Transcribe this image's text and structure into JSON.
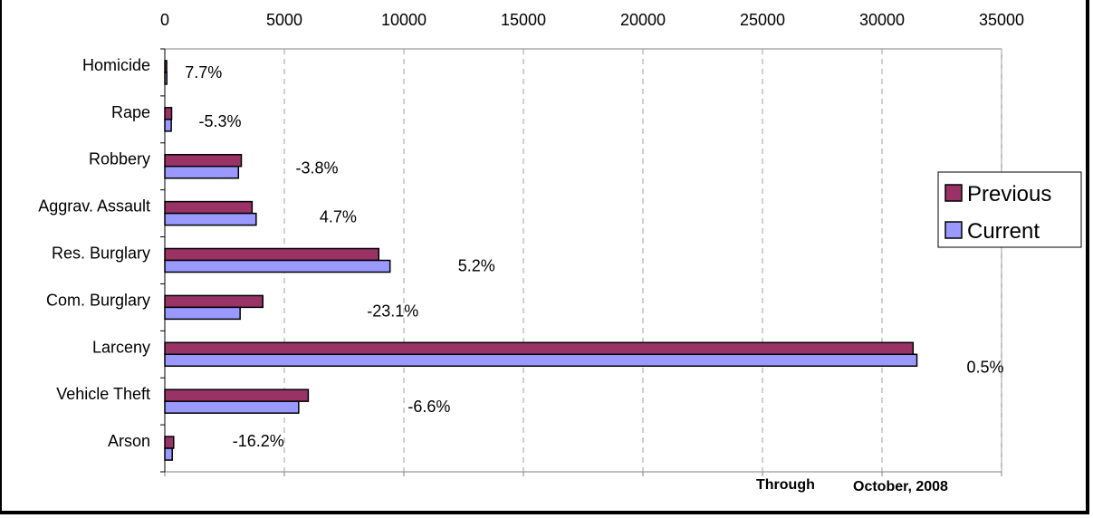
{
  "chart_data": {
    "type": "bar",
    "orientation": "horizontal",
    "categories": [
      "Homicide",
      "Rape",
      "Robbery",
      "Aggrav. Assault",
      "Res. Burglary",
      "Com. Burglary",
      "Larceny",
      "Vehicle Theft",
      "Arson"
    ],
    "series": [
      {
        "name": "Previous",
        "color": "#993366",
        "values": [
          78,
          285,
          3200,
          3650,
          8950,
          4100,
          31300,
          6000,
          370
        ]
      },
      {
        "name": "Current",
        "color": "#9999ff",
        "values": [
          84,
          270,
          3080,
          3820,
          9420,
          3150,
          31460,
          5600,
          310
        ]
      }
    ],
    "change_labels": [
      "7.7%",
      "-5.3%",
      "-3.8%",
      "4.7%",
      "5.2%",
      "-23.1%",
      "0.5%",
      "-6.6%",
      "-16.2%"
    ],
    "xlim": [
      0,
      35000
    ],
    "x_ticks": [
      "0",
      "5000",
      "10000",
      "15000",
      "20000",
      "25000",
      "30000",
      "35000"
    ],
    "grid": true,
    "legend_position": "right",
    "annotations": [
      "Through",
      "October, 2008"
    ]
  }
}
